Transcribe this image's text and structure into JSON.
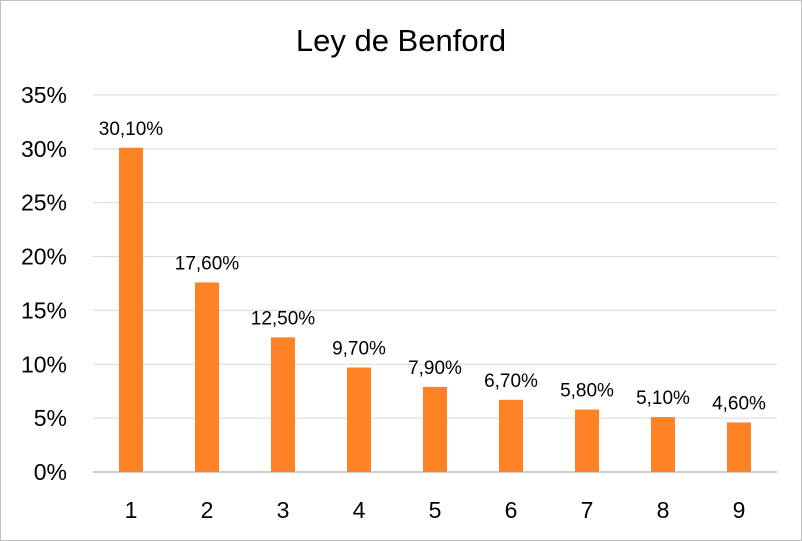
{
  "chart_data": {
    "type": "bar",
    "title": "Ley de Benford",
    "xlabel": "",
    "ylabel": "",
    "categories": [
      "1",
      "2",
      "3",
      "4",
      "5",
      "6",
      "7",
      "8",
      "9"
    ],
    "series": [
      {
        "values": [
          30.1,
          17.6,
          12.5,
          9.7,
          7.9,
          6.7,
          5.8,
          5.1,
          4.6
        ],
        "data_labels": [
          "30,10%",
          "17,60%",
          "12,50%",
          "9,70%",
          "7,90%",
          "6,70%",
          "5,80%",
          "5,10%",
          "4,60%"
        ]
      }
    ],
    "ylim": [
      0,
      35
    ],
    "y_ticks": [
      0,
      5,
      10,
      15,
      20,
      25,
      30,
      35
    ],
    "y_tick_labels": [
      "0%",
      "5%",
      "10%",
      "15%",
      "20%",
      "25%",
      "30%",
      "35%"
    ],
    "grid": true,
    "legend": "none",
    "colors": {
      "bar": "#FF8225",
      "grid": "#d9d9d9",
      "axis": "#bfbfbf"
    }
  }
}
